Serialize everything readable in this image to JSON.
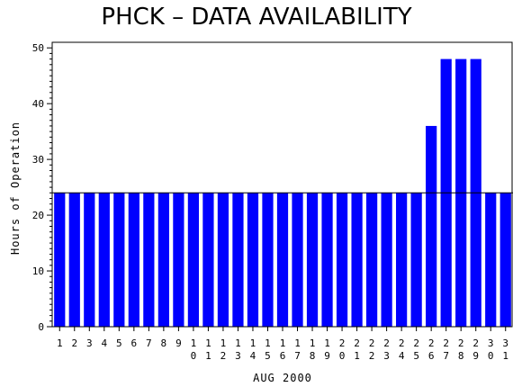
{
  "chart_data": {
    "type": "bar",
    "title": "PHCK – DATA AVAILABILITY",
    "xlabel": "AUG 2000",
    "ylabel": "Hours of Operation",
    "categories": [
      "1",
      "2",
      "3",
      "4",
      "5",
      "6",
      "7",
      "8",
      "9",
      "10",
      "11",
      "12",
      "13",
      "14",
      "15",
      "16",
      "17",
      "18",
      "19",
      "20",
      "21",
      "22",
      "23",
      "24",
      "25",
      "26",
      "27",
      "28",
      "29",
      "30",
      "31"
    ],
    "values": [
      24,
      24,
      24,
      24,
      24,
      24,
      24,
      24,
      24,
      24,
      24,
      24,
      24,
      24,
      24,
      24,
      24,
      24,
      24,
      24,
      24,
      24,
      24,
      24,
      24,
      36,
      48,
      48,
      48,
      24,
      24
    ],
    "ylim": [
      0,
      51
    ],
    "yticks": [
      0,
      10,
      20,
      30,
      40,
      50
    ],
    "reference_line": 24,
    "bar_color": "#0000ff",
    "grid": false
  }
}
